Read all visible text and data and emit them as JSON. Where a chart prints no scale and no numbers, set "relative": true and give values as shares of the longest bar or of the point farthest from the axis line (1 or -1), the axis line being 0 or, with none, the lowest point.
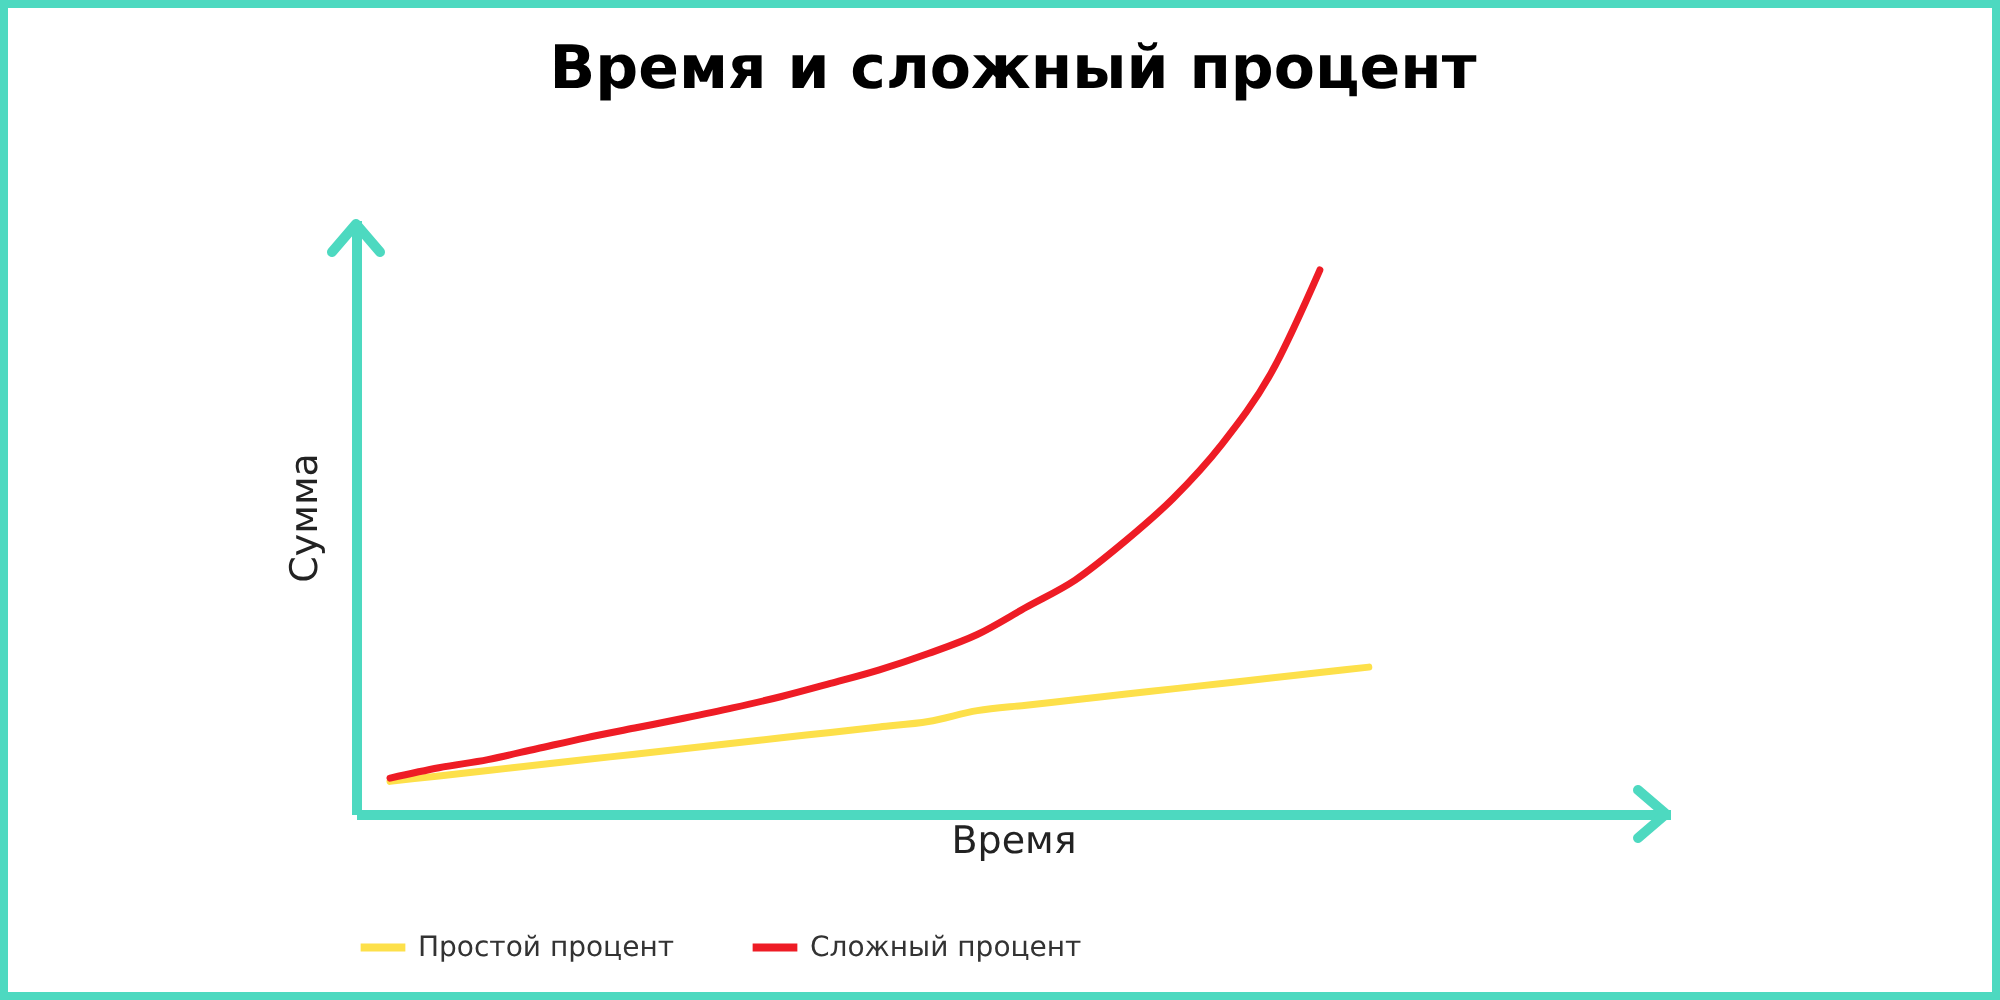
{
  "chart_data": {
    "type": "line",
    "title": "Время и сложный процент",
    "xlabel": "Время",
    "ylabel": "Сумма",
    "relative": true,
    "legend": "bottom",
    "categories": [
      null,
      null,
      null,
      null,
      null,
      null,
      null,
      null,
      null,
      null,
      null,
      null,
      null,
      null,
      null,
      null,
      null,
      null,
      null,
      null,
      null
    ],
    "series": [
      {
        "name": "Простой процент",
        "color": "#fde04a",
        "values": [
          0.06,
          0.07,
          0.08,
          0.09,
          0.1,
          0.11,
          0.12,
          0.13,
          0.14,
          0.15,
          0.16,
          0.17,
          0.19,
          0.2,
          0.21,
          0.22,
          0.23,
          0.24,
          0.25,
          0.26,
          0.27
        ]
      },
      {
        "name": "Сложный процент",
        "color": "#ee1c25",
        "values": [
          0.066,
          0.085,
          0.1,
          0.12,
          0.14,
          0.158,
          0.176,
          0.195,
          0.216,
          0.24,
          0.265,
          0.295,
          0.33,
          0.38,
          0.43,
          0.5,
          0.58,
          0.68,
          0.81,
          1,
          null
        ]
      }
    ]
  }
}
